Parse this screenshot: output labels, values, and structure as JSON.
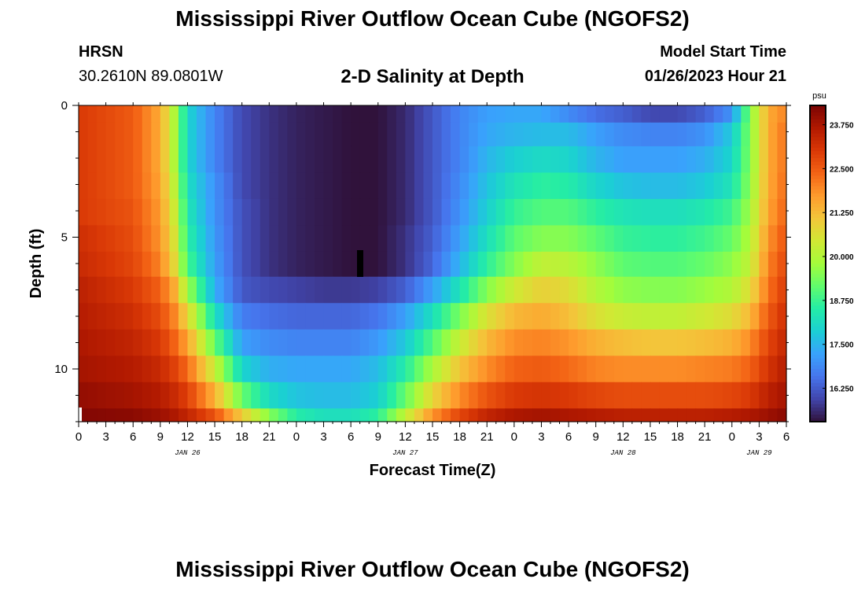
{
  "header": {
    "title": "Mississippi River Outflow Ocean Cube (NGOFS2)",
    "station": "HRSN",
    "coordinates": "30.2610N  89.0801W",
    "subtitle": "2-D Salinity at Depth",
    "model_start_label": "Model Start Time",
    "model_start_value": "01/26/2023 Hour 21"
  },
  "footer": {
    "title": "Mississippi River Outflow Ocean Cube (NGOFS2)"
  },
  "colors": {
    "colormap": [
      "#30123b",
      "#4145ab",
      "#4675ed",
      "#39a2fc",
      "#1bcfd4",
      "#24eca6",
      "#61fc6c",
      "#a4fc3b",
      "#d1e834",
      "#f3c63a",
      "#fe9b2d",
      "#f36315",
      "#d93806",
      "#b11901",
      "#7a0403"
    ]
  },
  "chart_data": {
    "type": "heatmap",
    "xlabel": "Forecast Time(Z)",
    "ylabel": "Depth (ft)",
    "x_range_hours": [
      0,
      78
    ],
    "ylim": [
      0,
      12
    ],
    "x_tick_labels": [
      "0",
      "3",
      "6",
      "9",
      "12",
      "15",
      "18",
      "21",
      "0",
      "3",
      "6",
      "9",
      "12",
      "15",
      "18",
      "21",
      "0",
      "3",
      "6",
      "9",
      "12",
      "15",
      "18",
      "21",
      "0",
      "3",
      "6"
    ],
    "x_tick_step_hours": 3,
    "y_tick_labels": [
      "0",
      "5",
      "10"
    ],
    "y_tick_values": [
      0,
      5,
      10
    ],
    "date_labels": [
      {
        "label": "JAN 26",
        "hour": 12
      },
      {
        "label": "JAN 27",
        "hour": 36
      },
      {
        "label": "JAN 28",
        "hour": 60
      },
      {
        "label": "JAN 29",
        "hour": 75
      }
    ],
    "colorbar": {
      "unit": "psu",
      "min": 15.3,
      "max": 24.3,
      "tick_labels": [
        "16.250",
        "17.500",
        "18.750",
        "20.000",
        "21.250",
        "22.500",
        "23.750"
      ],
      "tick_values": [
        16.25,
        17.5,
        18.75,
        20.0,
        21.25,
        22.5,
        23.75
      ]
    },
    "depth_layers": [
      {
        "top": 0.0,
        "bottom": 0.65
      },
      {
        "top": 0.65,
        "bottom": 1.55
      },
      {
        "top": 1.55,
        "bottom": 2.55
      },
      {
        "top": 2.55,
        "bottom": 3.55
      },
      {
        "top": 3.55,
        "bottom": 4.55
      },
      {
        "top": 4.55,
        "bottom": 5.55
      },
      {
        "top": 5.55,
        "bottom": 6.5
      },
      {
        "top": 6.5,
        "bottom": 7.5
      },
      {
        "top": 7.5,
        "bottom": 8.5
      },
      {
        "top": 8.5,
        "bottom": 9.5
      },
      {
        "top": 9.5,
        "bottom": 10.5
      },
      {
        "top": 10.5,
        "bottom": 11.5
      },
      {
        "top": 11.5,
        "bottom": 12.0
      }
    ],
    "salinity_keypoints": {
      "hours": [
        0,
        6,
        9,
        10.5,
        12,
        15,
        18,
        21,
        24,
        27,
        30,
        33,
        36,
        39,
        42,
        45,
        48,
        51,
        54,
        57,
        60,
        63,
        66,
        69,
        72,
        74,
        76,
        78
      ],
      "layers": [
        [
          23.0,
          22.5,
          21.5,
          20.0,
          18.0,
          16.8,
          16.0,
          15.7,
          15.5,
          15.4,
          15.3,
          15.3,
          15.6,
          16.2,
          16.8,
          17.2,
          17.3,
          17.3,
          16.9,
          16.5,
          16.3,
          16.0,
          16.0,
          16.3,
          17.0,
          19.5,
          21.5,
          22.0
        ],
        [
          23.0,
          22.5,
          21.5,
          20.0,
          18.0,
          16.8,
          16.0,
          15.7,
          15.5,
          15.4,
          15.3,
          15.3,
          15.6,
          16.2,
          16.8,
          17.3,
          17.5,
          17.6,
          17.6,
          17.2,
          16.9,
          16.8,
          16.8,
          17.0,
          17.8,
          19.5,
          21.5,
          22.2
        ],
        [
          23.0,
          22.5,
          21.5,
          20.0,
          18.0,
          16.8,
          16.0,
          15.7,
          15.5,
          15.4,
          15.3,
          15.3,
          15.6,
          16.2,
          16.8,
          17.5,
          17.9,
          18.1,
          18.0,
          17.5,
          17.2,
          17.2,
          17.2,
          17.4,
          18.0,
          19.5,
          21.5,
          22.2
        ],
        [
          23.0,
          22.5,
          21.6,
          20.2,
          18.2,
          17.0,
          16.0,
          15.7,
          15.5,
          15.4,
          15.3,
          15.3,
          15.6,
          16.2,
          16.9,
          17.7,
          18.3,
          18.6,
          18.5,
          18.0,
          17.7,
          17.6,
          17.6,
          17.8,
          18.3,
          19.6,
          21.5,
          22.3
        ],
        [
          23.0,
          22.6,
          21.7,
          20.4,
          18.4,
          17.0,
          16.1,
          15.7,
          15.5,
          15.4,
          15.3,
          15.3,
          15.6,
          16.2,
          17.0,
          17.9,
          18.7,
          19.0,
          19.0,
          18.6,
          18.3,
          18.2,
          18.2,
          18.4,
          18.8,
          19.8,
          21.6,
          22.4
        ],
        [
          23.2,
          22.7,
          21.8,
          20.6,
          18.6,
          17.1,
          16.1,
          15.7,
          15.5,
          15.4,
          15.3,
          15.3,
          15.7,
          16.3,
          17.2,
          18.2,
          19.1,
          19.5,
          19.5,
          19.1,
          18.7,
          18.6,
          18.6,
          18.8,
          19.2,
          20.0,
          21.8,
          22.6
        ],
        [
          23.3,
          22.8,
          22.0,
          20.8,
          18.9,
          17.2,
          16.1,
          15.7,
          15.5,
          15.4,
          15.3,
          15.3,
          15.7,
          16.4,
          17.5,
          18.6,
          19.5,
          20.2,
          20.1,
          19.6,
          19.1,
          19.0,
          19.0,
          19.2,
          19.6,
          20.2,
          22.0,
          22.8
        ],
        [
          23.5,
          23.0,
          22.4,
          21.5,
          19.8,
          17.4,
          16.2,
          16.0,
          15.9,
          15.8,
          15.8,
          15.9,
          16.3,
          17.2,
          18.3,
          19.5,
          20.4,
          20.9,
          20.7,
          20.0,
          19.6,
          19.5,
          19.5,
          19.7,
          20.0,
          20.7,
          22.2,
          23.0
        ],
        [
          23.6,
          23.2,
          22.7,
          22.0,
          20.8,
          18.2,
          16.7,
          16.5,
          16.4,
          16.4,
          16.4,
          16.6,
          17.2,
          18.2,
          19.4,
          20.6,
          21.3,
          21.5,
          21.2,
          20.6,
          20.3,
          20.2,
          20.2,
          20.4,
          20.7,
          21.3,
          22.5,
          23.2
        ],
        [
          23.7,
          23.4,
          23.0,
          22.4,
          21.6,
          19.2,
          17.2,
          16.9,
          16.8,
          16.8,
          16.8,
          17.1,
          17.8,
          19.0,
          20.3,
          21.3,
          21.9,
          22.0,
          21.8,
          21.4,
          21.2,
          21.1,
          21.1,
          21.2,
          21.4,
          21.9,
          22.8,
          23.4
        ],
        [
          23.8,
          23.6,
          23.3,
          22.9,
          22.3,
          20.3,
          18.0,
          17.4,
          17.3,
          17.3,
          17.3,
          17.6,
          18.5,
          19.9,
          21.1,
          21.9,
          22.4,
          22.5,
          22.3,
          22.0,
          21.9,
          21.9,
          21.9,
          22.0,
          22.1,
          22.4,
          23.1,
          23.6
        ],
        [
          24.0,
          23.8,
          23.6,
          23.3,
          22.9,
          21.4,
          19.2,
          18.1,
          17.7,
          17.6,
          17.6,
          17.9,
          19.2,
          20.8,
          21.9,
          22.6,
          23.0,
          23.1,
          23.0,
          22.8,
          22.7,
          22.7,
          22.7,
          22.7,
          22.8,
          23.0,
          23.5,
          23.8
        ],
        [
          24.2,
          24.1,
          23.9,
          23.7,
          23.4,
          22.6,
          21.0,
          19.5,
          18.5,
          18.2,
          18.2,
          18.6,
          20.2,
          21.8,
          22.8,
          23.4,
          23.7,
          23.8,
          23.7,
          23.6,
          23.5,
          23.5,
          23.5,
          23.5,
          23.6,
          23.7,
          23.9,
          24.1
        ]
      ]
    }
  }
}
